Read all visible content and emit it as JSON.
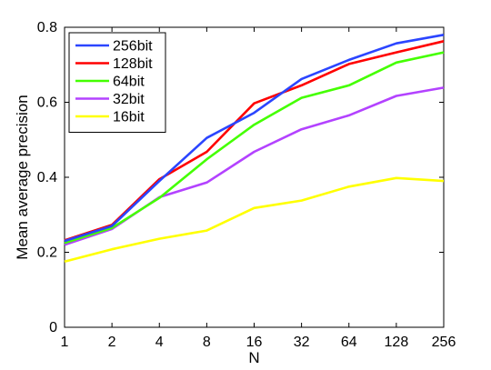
{
  "chart_data": {
    "type": "line",
    "title": "",
    "xlabel": "N",
    "ylabel": "Mean average precision",
    "categories": [
      "1",
      "2",
      "4",
      "8",
      "16",
      "32",
      "64",
      "128",
      "256"
    ],
    "yticks": [
      "0",
      "0.2",
      "0.4",
      "0.6",
      "0.8"
    ],
    "ytick_values": [
      0,
      0.2,
      0.4,
      0.6,
      0.8
    ],
    "ylim": [
      0,
      0.8
    ],
    "grid": false,
    "legend_position": "top-left",
    "series": [
      {
        "name": "256bit",
        "color": "#2b45ff",
        "values": [
          0.23,
          0.27,
          0.39,
          0.505,
          0.572,
          0.662,
          0.713,
          0.757,
          0.78
        ]
      },
      {
        "name": "128bit",
        "color": "#ff0000",
        "values": [
          0.232,
          0.273,
          0.395,
          0.468,
          0.597,
          0.645,
          0.702,
          0.733,
          0.763
        ]
      },
      {
        "name": "64bit",
        "color": "#44ff00",
        "values": [
          0.225,
          0.265,
          0.345,
          0.448,
          0.54,
          0.612,
          0.645,
          0.706,
          0.733
        ]
      },
      {
        "name": "32bit",
        "color": "#b342ff",
        "values": [
          0.22,
          0.262,
          0.347,
          0.386,
          0.468,
          0.528,
          0.565,
          0.617,
          0.639
        ]
      },
      {
        "name": "16bit",
        "color": "#ffff00",
        "values": [
          0.175,
          0.208,
          0.236,
          0.258,
          0.318,
          0.338,
          0.375,
          0.398,
          0.39
        ]
      }
    ]
  }
}
